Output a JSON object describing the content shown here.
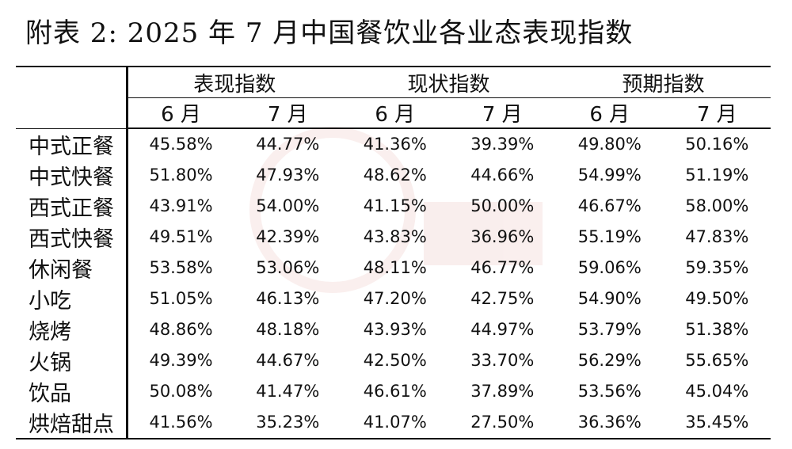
{
  "title": "附表 2: 2025 年 7 月中国餐饮业各业态表现指数",
  "table": {
    "groups": [
      "表现指数",
      "现状指数",
      "预期指数"
    ],
    "months": [
      "6 月",
      "7 月",
      "6 月",
      "7 月",
      "6 月",
      "7 月"
    ],
    "rows": [
      {
        "label": "中式正餐",
        "values": [
          "45.58%",
          "44.77%",
          "41.36%",
          "39.39%",
          "49.80%",
          "50.16%"
        ]
      },
      {
        "label": "中式快餐",
        "values": [
          "51.80%",
          "47.93%",
          "48.62%",
          "44.66%",
          "54.99%",
          "51.19%"
        ]
      },
      {
        "label": "西式正餐",
        "values": [
          "43.91%",
          "54.00%",
          "41.15%",
          "50.00%",
          "46.67%",
          "58.00%"
        ]
      },
      {
        "label": "西式快餐",
        "values": [
          "49.51%",
          "42.39%",
          "43.83%",
          "36.96%",
          "55.19%",
          "47.83%"
        ]
      },
      {
        "label": "休闲餐",
        "values": [
          "53.58%",
          "53.06%",
          "48.11%",
          "46.77%",
          "59.06%",
          "59.35%"
        ]
      },
      {
        "label": "小吃",
        "values": [
          "51.05%",
          "46.13%",
          "47.20%",
          "42.75%",
          "54.90%",
          "49.50%"
        ]
      },
      {
        "label": "烧烤",
        "values": [
          "48.86%",
          "48.18%",
          "43.93%",
          "44.97%",
          "53.79%",
          "51.38%"
        ]
      },
      {
        "label": "火锅",
        "values": [
          "49.39%",
          "44.67%",
          "42.50%",
          "33.70%",
          "56.29%",
          "55.65%"
        ]
      },
      {
        "label": "饮品",
        "values": [
          "50.08%",
          "41.47%",
          "46.61%",
          "37.89%",
          "53.56%",
          "45.04%"
        ]
      },
      {
        "label": "烘焙甜点",
        "values": [
          "41.56%",
          "35.23%",
          "41.07%",
          "27.50%",
          "36.36%",
          "35.45%"
        ]
      }
    ]
  }
}
